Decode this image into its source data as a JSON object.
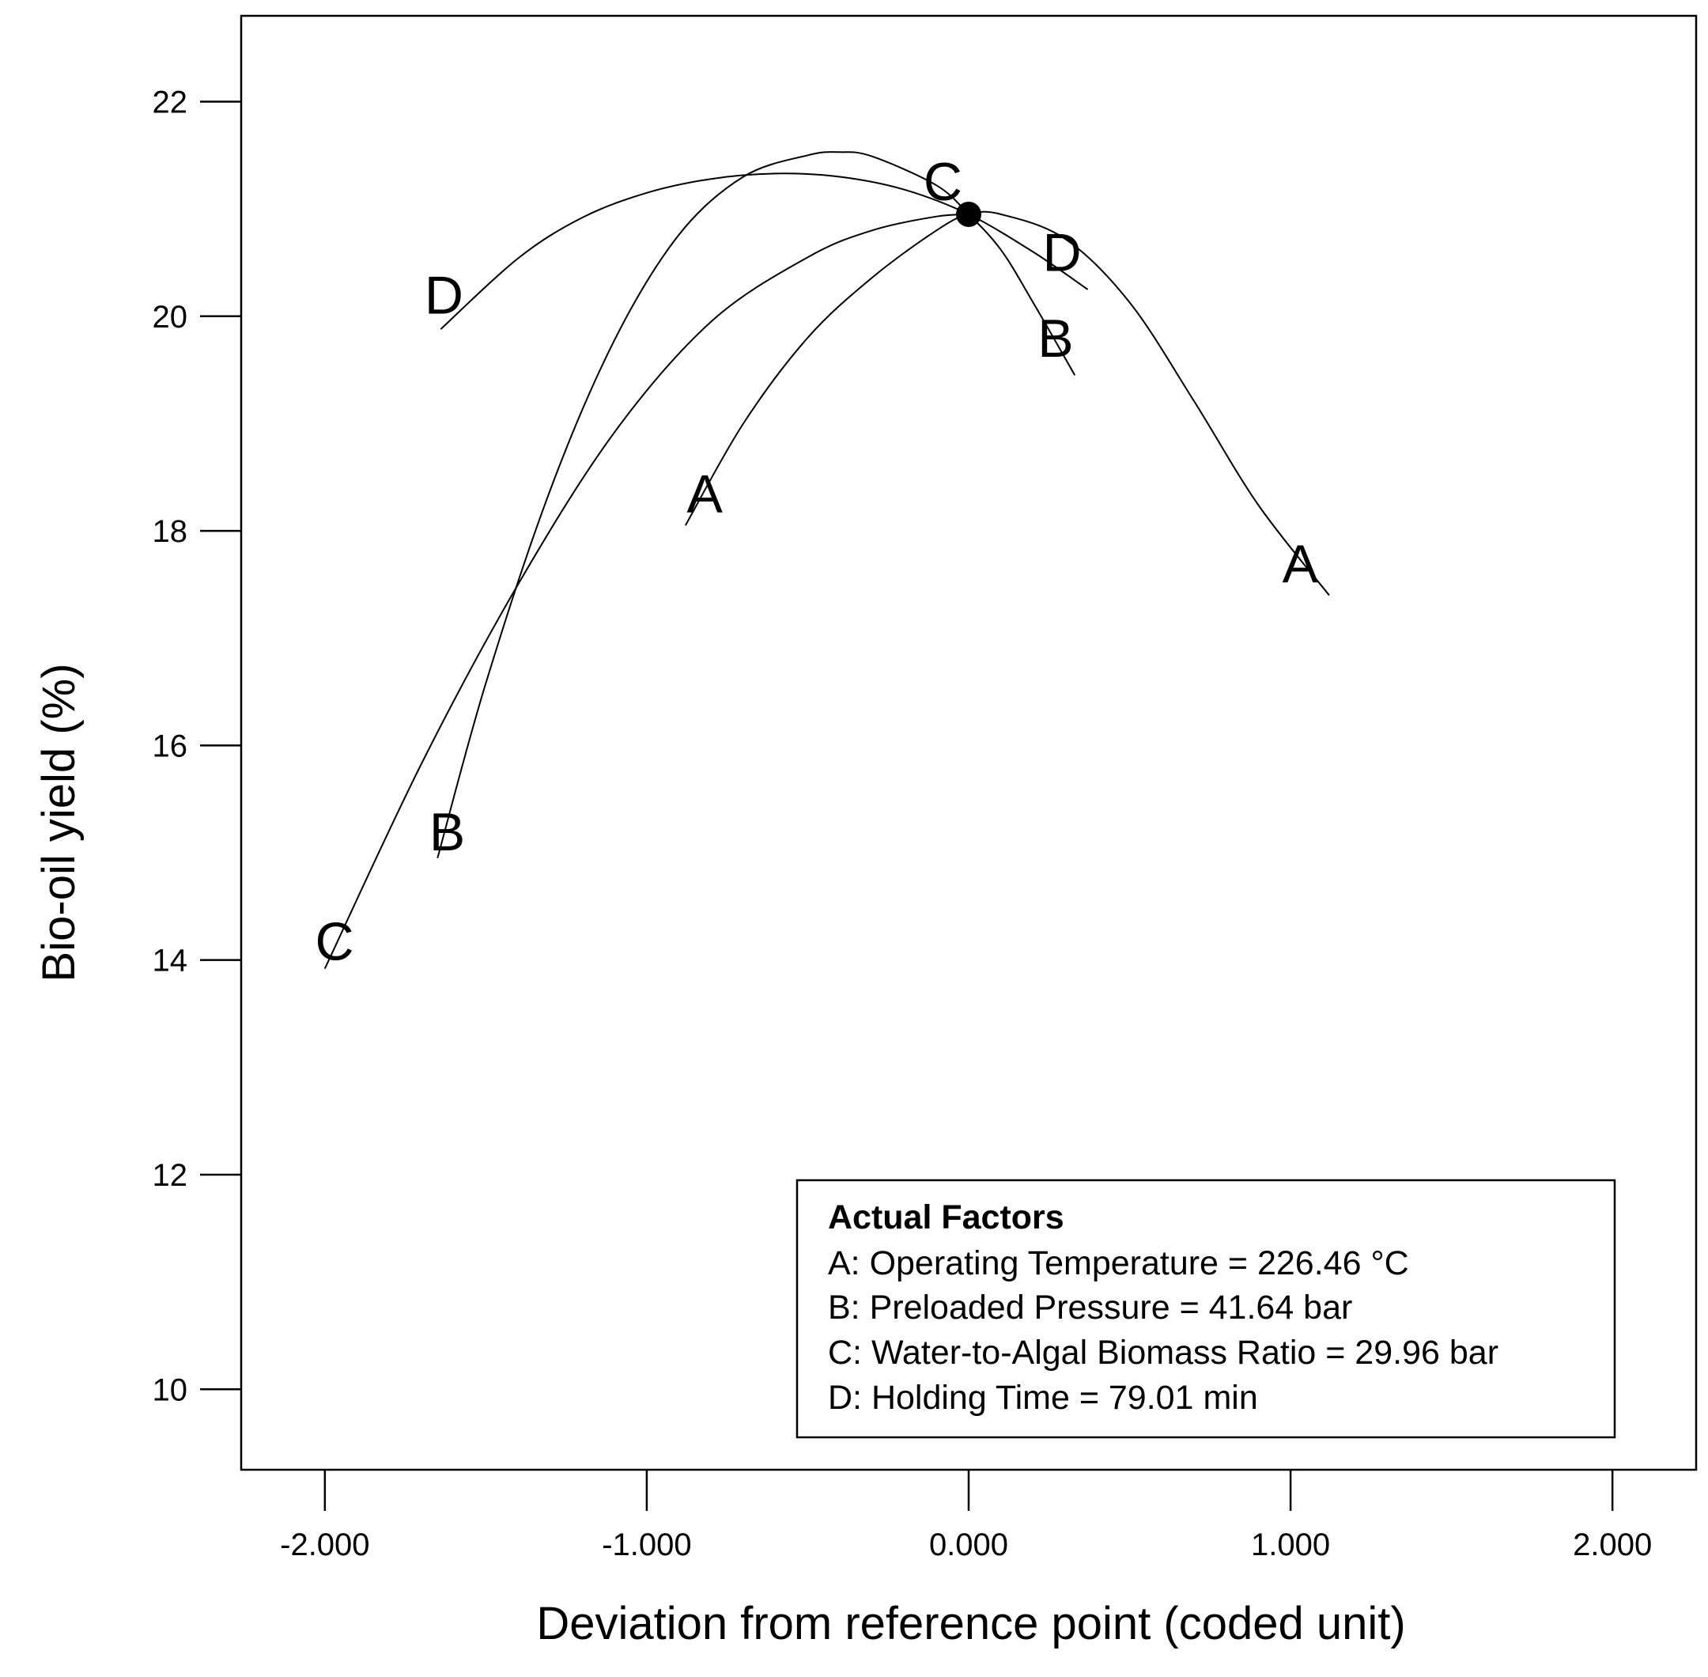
{
  "chart_data": {
    "type": "line",
    "title": "",
    "xlabel": "Deviation from reference point (coded unit)",
    "ylabel": "Bio-oil yield (%)",
    "xlim": [
      -2.26,
      2.26
    ],
    "ylim": [
      9.25,
      22.8
    ],
    "x_ticks": [
      -2,
      -1,
      0,
      1,
      2
    ],
    "x_tick_labels": [
      "-2.000",
      "-1.000",
      "0.000",
      "1.000",
      "2.000"
    ],
    "y_ticks": [
      10,
      12,
      14,
      16,
      18,
      20,
      22
    ],
    "y_tick_labels": [
      "10",
      "12",
      "14",
      "16",
      "18",
      "20",
      "22"
    ],
    "grid": false,
    "reference_point": {
      "x": 0,
      "y": 20.95
    },
    "series": [
      {
        "name": "A",
        "x": [
          -0.88,
          -0.7,
          -0.5,
          -0.3,
          -0.1,
          0.0,
          0.1,
          0.3,
          0.5,
          0.7,
          0.9,
          1.12
        ],
        "y": [
          18.05,
          19.0,
          19.8,
          20.36,
          20.8,
          20.95,
          20.95,
          20.72,
          20.13,
          19.21,
          18.24,
          17.4
        ]
      },
      {
        "name": "B",
        "x": [
          -1.65,
          -1.5,
          -1.3,
          -1.1,
          -0.9,
          -0.7,
          -0.5,
          -0.4,
          -0.3,
          -0.1,
          0.0,
          0.1,
          0.2,
          0.33
        ],
        "y": [
          14.95,
          16.58,
          18.38,
          19.78,
          20.76,
          21.3,
          21.5,
          21.53,
          21.49,
          21.22,
          20.95,
          20.62,
          20.13,
          19.45
        ]
      },
      {
        "name": "C",
        "x": [
          -2.0,
          -1.7,
          -1.4,
          -1.1,
          -0.8,
          -0.5,
          -0.3,
          -0.1,
          0.0
        ],
        "y": [
          13.92,
          15.83,
          17.5,
          18.92,
          19.95,
          20.55,
          20.8,
          20.93,
          20.95
        ]
      },
      {
        "name": "D",
        "x": [
          -1.64,
          -1.4,
          -1.2,
          -1.0,
          -0.8,
          -0.6,
          -0.4,
          -0.2,
          0.0,
          0.2,
          0.37
        ],
        "y": [
          19.88,
          20.54,
          20.92,
          21.15,
          21.28,
          21.33,
          21.3,
          21.18,
          20.95,
          20.6,
          20.25
        ]
      }
    ],
    "curve_labels": [
      {
        "text": "D",
        "x": -1.63,
        "y": 20.2
      },
      {
        "text": "C",
        "x": -0.08,
        "y": 21.26
      },
      {
        "text": "D",
        "x": 0.29,
        "y": 20.6
      },
      {
        "text": "B",
        "x": 0.27,
        "y": 19.8
      },
      {
        "text": "A",
        "x": -0.82,
        "y": 18.35
      },
      {
        "text": "A",
        "x": 1.03,
        "y": 17.7
      },
      {
        "text": "B",
        "x": -1.62,
        "y": 15.2
      },
      {
        "text": "C",
        "x": -1.97,
        "y": 14.18
      }
    ]
  },
  "legend": {
    "title": "Actual Factors",
    "lines": [
      "A: Operating Temperature = 226.46 °C",
      "B: Preloaded Pressure = 41.64 bar",
      "C: Water-to-Algal Biomass Ratio = 29.96 bar",
      "D: Holding Time = 79.01 min"
    ]
  }
}
